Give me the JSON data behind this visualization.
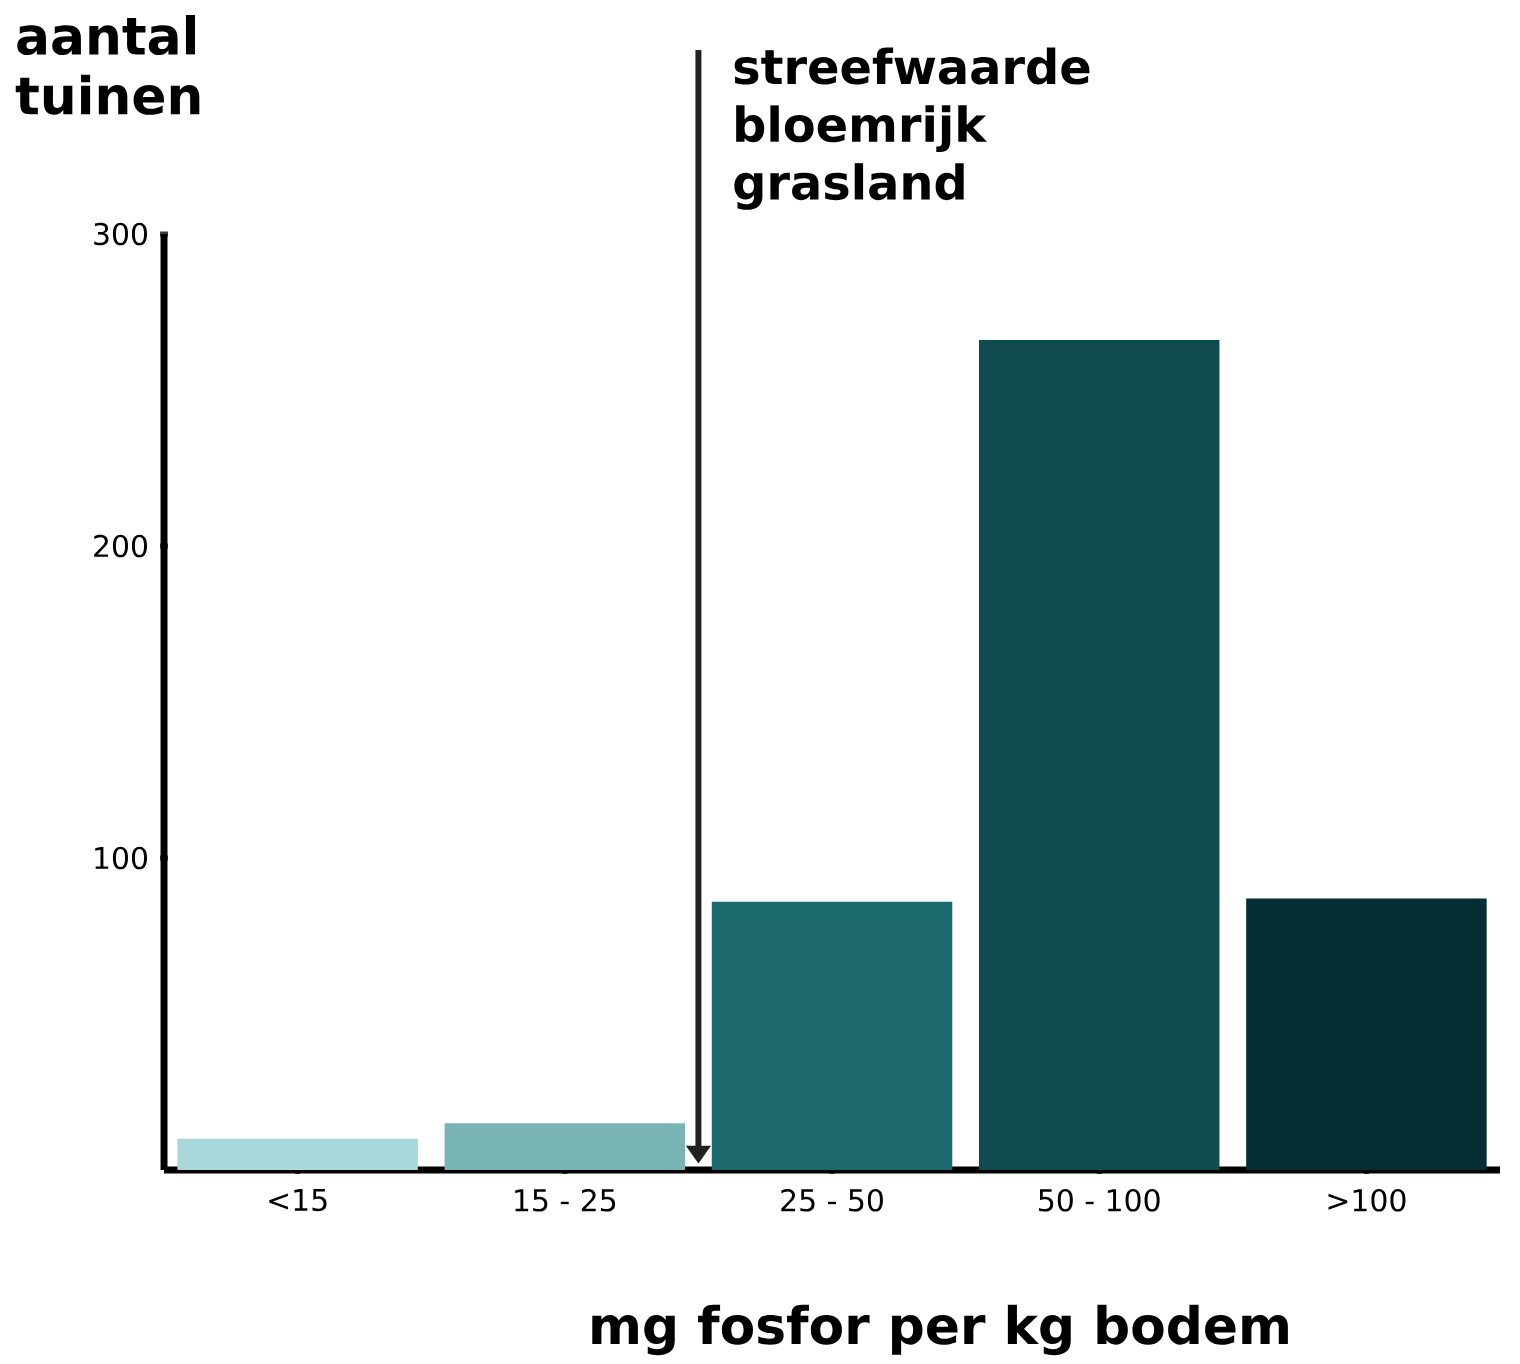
{
  "chart_data": {
    "type": "bar",
    "xlabel": "mg fosfor per kg bodem",
    "ylabel": "aantal tuinen",
    "categories": [
      "<15",
      "15 - 25",
      "25 - 50",
      "50 - 100",
      ">100"
    ],
    "values": [
      10,
      15,
      86,
      266,
      87
    ],
    "colors": [
      "#a8d8da",
      "#78b4b4",
      "#1c6a6e",
      "#0f4b4f",
      "#042e33"
    ],
    "ylim": [
      0,
      300
    ],
    "yticks": [
      100,
      200,
      300
    ],
    "grid": false,
    "annotations": [
      "streefwaarde bloemrijk grasland"
    ]
  }
}
